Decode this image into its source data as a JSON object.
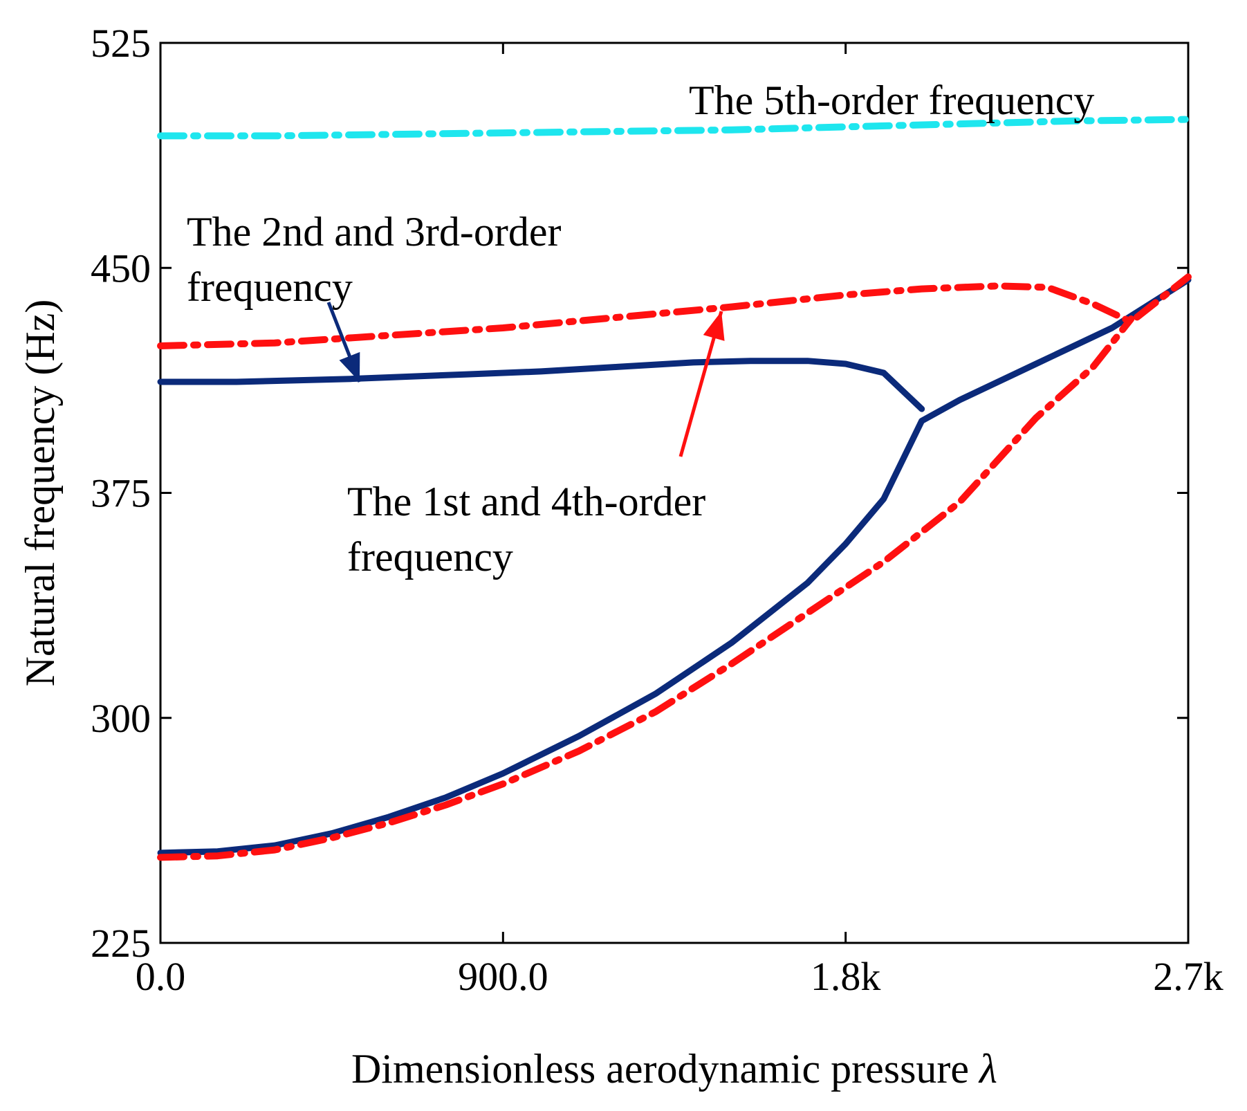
{
  "chart_data": {
    "type": "line",
    "xlabel": "Dimensionless aerodynamic pressure",
    "xlabel_symbol": "λ",
    "ylabel": "Natural frequency (Hz)",
    "xlim": [
      0,
      2700
    ],
    "ylim": [
      225,
      525
    ],
    "xticks": [
      0,
      900,
      1800,
      2700
    ],
    "xtick_labels": [
      "0.0",
      "900.0",
      "1.8k",
      "2.7k"
    ],
    "yticks": [
      225,
      300,
      375,
      450,
      525
    ],
    "ytick_labels": [
      "225",
      "300",
      "375",
      "450",
      "525"
    ],
    "grid": false,
    "legend": "none",
    "colors": {
      "solid": "#0b2a7a",
      "red": "#ff1010",
      "cyan": "#1ee6ee"
    },
    "series": [
      {
        "style": "solid",
        "color": "#0b2a7a",
        "x": [
          0,
          200,
          500,
          800,
          1000,
          1200,
          1400,
          1550,
          1700,
          1800,
          1900,
          2000
        ],
        "y": [
          412,
          412,
          413,
          414.5,
          415.5,
          417,
          418.5,
          419,
          419,
          418,
          415,
          403
        ]
      },
      {
        "style": "solid",
        "color": "#0b2a7a",
        "x": [
          0,
          150,
          300,
          450,
          600,
          750,
          900,
          1100,
          1300,
          1500,
          1700,
          1800,
          1900,
          2000,
          2100,
          2300,
          2500,
          2700
        ],
        "y": [
          255,
          255.5,
          257.5,
          261.5,
          267,
          273.5,
          281.5,
          294,
          308,
          325,
          345,
          358,
          373,
          399,
          406,
          418,
          430,
          446
        ]
      },
      {
        "style": "dashdot",
        "color": "#ff1010",
        "x": [
          0,
          300,
          600,
          900,
          1200,
          1500,
          1800,
          2000,
          2200,
          2330,
          2450,
          2550,
          2700
        ],
        "y": [
          424,
          425,
          427.5,
          430,
          433.5,
          437,
          441,
          443,
          444,
          443.5,
          438,
          432,
          447
        ]
      },
      {
        "style": "dashdot",
        "color": "#ff1010",
        "x": [
          0,
          150,
          300,
          450,
          600,
          750,
          900,
          1100,
          1300,
          1500,
          1700,
          1900,
          2100,
          2300,
          2450,
          2550
        ],
        "y": [
          253.5,
          254,
          256,
          260,
          265,
          271,
          278,
          289,
          302,
          318,
          335,
          352,
          372,
          400,
          417,
          433
        ]
      },
      {
        "style": "dashdot",
        "color": "#1ee6ee",
        "x": [
          0,
          300,
          600,
          900,
          1200,
          1500,
          1800,
          2100,
          2400,
          2700
        ],
        "y": [
          494,
          494,
          494.5,
          495,
          495.5,
          496,
          497,
          498,
          499,
          499.5
        ]
      }
    ],
    "annotations": [
      {
        "lines": [
          "The 5th-order frequency"
        ]
      },
      {
        "lines": [
          "The 2nd and 3rd-order",
          "frequency"
        ]
      },
      {
        "lines": [
          "The 1st and 4th-order",
          "frequency"
        ]
      }
    ]
  }
}
